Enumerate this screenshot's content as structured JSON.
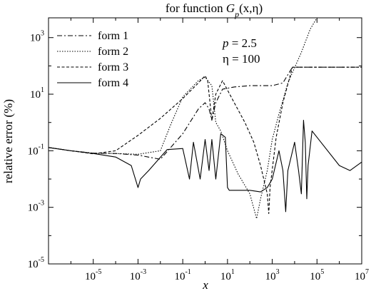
{
  "chart_data": {
    "type": "line",
    "title_prefix": "for function ",
    "title_func": "G",
    "title_sub": "p",
    "title_args": "(x,η)",
    "xlabel": "x",
    "ylabel": "relative error (%)",
    "x_scale": "log",
    "y_scale": "log",
    "xlim": [
      1e-07,
      10000000.0
    ],
    "ylim": [
      1e-05,
      5000
    ],
    "x_ticks": [
      {
        "base": "10",
        "exp": "-5",
        "value": 1e-05
      },
      {
        "base": "10",
        "exp": "-3",
        "value": 0.001
      },
      {
        "base": "10",
        "exp": "-1",
        "value": 0.1
      },
      {
        "base": "10",
        "exp": "1",
        "value": 10.0
      },
      {
        "base": "10",
        "exp": "3",
        "value": 1000.0
      },
      {
        "base": "10",
        "exp": "5",
        "value": 100000.0
      },
      {
        "base": "10",
        "exp": "7",
        "value": 10000000.0
      }
    ],
    "y_ticks": [
      {
        "base": "10",
        "exp": "-5",
        "value": 1e-05
      },
      {
        "base": "10",
        "exp": "-3",
        "value": 0.001
      },
      {
        "base": "10",
        "exp": "-1",
        "value": 0.1
      },
      {
        "base": "10",
        "exp": "1",
        "value": 10.0
      },
      {
        "base": "10",
        "exp": "3",
        "value": 1000.0
      }
    ],
    "annotation": {
      "p_var": "p",
      "p_value": " = 2.5",
      "eta_var": "η",
      "eta_value": " = 100"
    },
    "legend_position": "top-left",
    "series": [
      {
        "name": "form 1",
        "dash": "7,3,2,3",
        "color": "#000000",
        "points": [
          [
            1e-07,
            0.13
          ],
          [
            1e-06,
            0.1
          ],
          [
            1e-05,
            0.082
          ],
          [
            0.0001,
            0.08
          ],
          [
            0.001,
            0.07
          ],
          [
            0.01,
            0.05
          ],
          [
            0.1,
            0.4
          ],
          [
            0.5,
            3
          ],
          [
            1,
            5
          ],
          [
            1.5,
            3
          ],
          [
            2,
            1.2
          ],
          [
            3,
            5
          ],
          [
            6,
            15
          ],
          [
            20,
            18
          ],
          [
            100,
            20
          ],
          [
            1000,
            20
          ],
          [
            3000,
            25
          ],
          [
            8000,
            90
          ],
          [
            100000.0,
            90
          ],
          [
            1000000.0,
            90
          ],
          [
            10000000.0,
            90
          ]
        ]
      },
      {
        "name": "form 2",
        "dash": "1.5,2",
        "color": "#000000",
        "points": [
          [
            1e-07,
            0.13
          ],
          [
            1e-06,
            0.1
          ],
          [
            1e-05,
            0.082
          ],
          [
            0.0001,
            0.08
          ],
          [
            0.001,
            0.075
          ],
          [
            0.01,
            0.1
          ],
          [
            0.03,
            0.9
          ],
          [
            0.1,
            8
          ],
          [
            0.5,
            30
          ],
          [
            1,
            40
          ],
          [
            2,
            20
          ],
          [
            3,
            1
          ],
          [
            5,
            0.5
          ],
          [
            10,
            0.1
          ],
          [
            30,
            0.015
          ],
          [
            100,
            0.003
          ],
          [
            200,
            0.0004
          ],
          [
            300,
            0.002
          ],
          [
            600,
            0.02
          ],
          [
            1000,
            0.25
          ],
          [
            2000,
            2
          ],
          [
            5000,
            25
          ],
          [
            20000.0,
            300
          ],
          [
            50000.0,
            2000
          ],
          [
            100000.0,
            5000
          ]
        ]
      },
      {
        "name": "form 3",
        "dash": "4,2.5",
        "color": "#000000",
        "points": [
          [
            1e-07,
            0.13
          ],
          [
            1e-06,
            0.1
          ],
          [
            1e-05,
            0.078
          ],
          [
            0.0001,
            0.1
          ],
          [
            0.001,
            0.35
          ],
          [
            0.01,
            1.4
          ],
          [
            0.1,
            7
          ],
          [
            0.5,
            25
          ],
          [
            1,
            45
          ],
          [
            1.3,
            30
          ],
          [
            2,
            1.2
          ],
          [
            3,
            10
          ],
          [
            6,
            30
          ],
          [
            20,
            5
          ],
          [
            60,
            1
          ],
          [
            150,
            0.2
          ],
          [
            300,
            0.03
          ],
          [
            600,
            0.003
          ],
          [
            700,
            0.0006
          ],
          [
            800,
            0.005
          ],
          [
            1500,
            0.3
          ],
          [
            3000,
            5
          ],
          [
            8000,
            90
          ],
          [
            100000.0,
            90
          ],
          [
            1000000.0,
            90
          ],
          [
            10000000.0,
            90
          ]
        ]
      },
      {
        "name": "form 4",
        "dash": "",
        "color": "#000000",
        "points": [
          [
            1e-07,
            0.13
          ],
          [
            1e-06,
            0.1
          ],
          [
            1e-05,
            0.08
          ],
          [
            0.0001,
            0.06
          ],
          [
            0.0005,
            0.03
          ],
          [
            0.001,
            0.005
          ],
          [
            0.0013,
            0.01
          ],
          [
            0.003,
            0.02
          ],
          [
            0.02,
            0.11
          ],
          [
            0.1,
            0.12
          ],
          [
            0.2,
            0.01
          ],
          [
            0.3,
            0.2
          ],
          [
            0.6,
            0.01
          ],
          [
            1,
            0.25
          ],
          [
            1.5,
            0.02
          ],
          [
            2,
            0.25
          ],
          [
            3,
            0.01
          ],
          [
            5,
            0.4
          ],
          [
            8,
            0.3
          ],
          [
            10,
            0.005
          ],
          [
            12,
            0.004
          ],
          [
            100,
            0.004
          ],
          [
            300,
            0.0035
          ],
          [
            600,
            0.005
          ],
          [
            1000,
            0.01
          ],
          [
            2000,
            0.1
          ],
          [
            3000,
            0.02
          ],
          [
            4000,
            0.0007
          ],
          [
            5000,
            0.02
          ],
          [
            10000.0,
            0.2
          ],
          [
            15000.0,
            0.02
          ],
          [
            20000.0,
            0.003
          ],
          [
            25000.0,
            1.2
          ],
          [
            30000.0,
            0.2
          ],
          [
            35000.0,
            0.002
          ],
          [
            40000.0,
            0.03
          ],
          [
            60000.0,
            0.5
          ],
          [
            100000.0,
            0.3
          ],
          [
            1000000.0,
            0.03
          ],
          [
            3000000.0,
            0.02
          ],
          [
            10000000.0,
            0.04
          ]
        ]
      }
    ]
  }
}
